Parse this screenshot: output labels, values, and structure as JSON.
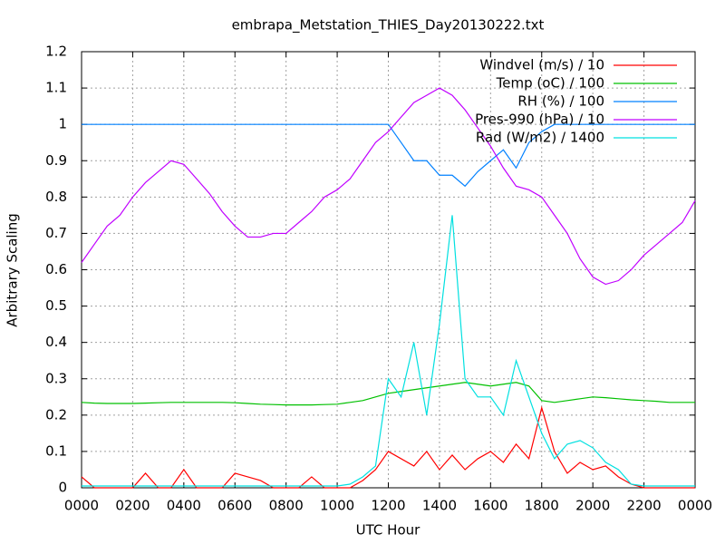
{
  "chart_data": {
    "type": "line",
    "title": "embrapa_Metstation_THIES_Day20130222.txt",
    "x_label": "UTC Hour",
    "y_label": "Arbitrary Scaling",
    "x": [
      0,
      0.5,
      1,
      1.5,
      2,
      2.5,
      3,
      3.5,
      4,
      4.5,
      5,
      5.5,
      6,
      6.5,
      7,
      7.5,
      8,
      8.5,
      9,
      9.5,
      10,
      10.5,
      11,
      11.5,
      12,
      12.5,
      13,
      13.5,
      14,
      14.5,
      15,
      15.5,
      16,
      16.5,
      17,
      17.5,
      18,
      18.5,
      19,
      19.5,
      20,
      20.5,
      21,
      21.5,
      22,
      22.5,
      23,
      23.5,
      24
    ],
    "xlim": [
      0,
      24
    ],
    "xticks": [
      {
        "value": 0,
        "label": "0000"
      },
      {
        "value": 2,
        "label": "0200"
      },
      {
        "value": 4,
        "label": "0400"
      },
      {
        "value": 6,
        "label": "0600"
      },
      {
        "value": 8,
        "label": "0800"
      },
      {
        "value": 10,
        "label": "1000"
      },
      {
        "value": 12,
        "label": "1200"
      },
      {
        "value": 14,
        "label": "1400"
      },
      {
        "value": 16,
        "label": "1600"
      },
      {
        "value": 18,
        "label": "1800"
      },
      {
        "value": 20,
        "label": "2000"
      },
      {
        "value": 22,
        "label": "2200"
      },
      {
        "value": 24,
        "label": "0000"
      }
    ],
    "ylim": [
      0,
      1.2
    ],
    "yticks": [
      0,
      0.1,
      0.2,
      0.3,
      0.4,
      0.5,
      0.6,
      0.7,
      0.8,
      0.9,
      1,
      1.1,
      1.2
    ],
    "grid": true,
    "legend": "top-right",
    "series": [
      {
        "name": "Windvel (m/s) / 10",
        "color": "#ff0000",
        "values": [
          0.03,
          0,
          0,
          0,
          0,
          0.04,
          0,
          0,
          0.05,
          0,
          0,
          0,
          0.04,
          0.03,
          0.02,
          0,
          0,
          0,
          0.03,
          0,
          0,
          0,
          0.02,
          0.05,
          0.1,
          0.08,
          0.06,
          0.1,
          0.05,
          0.09,
          0.05,
          0.08,
          0.1,
          0.07,
          0.12,
          0.08,
          0.22,
          0.1,
          0.04,
          0.07,
          0.05,
          0.06,
          0.03,
          0.01,
          0,
          0,
          0,
          0,
          0
        ]
      },
      {
        "name": "Temp (oC) / 100",
        "color": "#00c000",
        "values": [
          0.235,
          0.233,
          0.232,
          0.232,
          0.232,
          0.233,
          0.234,
          0.235,
          0.235,
          0.235,
          0.235,
          0.235,
          0.234,
          0.232,
          0.23,
          0.229,
          0.228,
          0.228,
          0.228,
          0.229,
          0.23,
          0.235,
          0.24,
          0.25,
          0.26,
          0.265,
          0.27,
          0.275,
          0.28,
          0.285,
          0.29,
          0.285,
          0.28,
          0.285,
          0.29,
          0.28,
          0.24,
          0.235,
          0.24,
          0.245,
          0.25,
          0.248,
          0.245,
          0.242,
          0.24,
          0.238,
          0.235,
          0.235,
          0.235
        ]
      },
      {
        "name": "RH (%) / 100",
        "color": "#0080ff",
        "values": [
          1,
          1,
          1,
          1,
          1,
          1,
          1,
          1,
          1,
          1,
          1,
          1,
          1,
          1,
          1,
          1,
          1,
          1,
          1,
          1,
          1,
          1,
          1,
          1,
          1,
          0.95,
          0.9,
          0.9,
          0.86,
          0.86,
          0.83,
          0.87,
          0.9,
          0.93,
          0.88,
          0.95,
          0.98,
          1,
          1,
          1,
          1,
          1,
          1,
          1,
          1,
          1,
          1,
          1,
          1
        ]
      },
      {
        "name": "Pres-990 (hPa) / 10",
        "color": "#c000ff",
        "values": [
          0.62,
          0.67,
          0.72,
          0.75,
          0.8,
          0.84,
          0.87,
          0.9,
          0.89,
          0.85,
          0.81,
          0.76,
          0.72,
          0.69,
          0.69,
          0.7,
          0.7,
          0.73,
          0.76,
          0.8,
          0.82,
          0.85,
          0.9,
          0.95,
          0.98,
          1.02,
          1.06,
          1.08,
          1.1,
          1.08,
          1.04,
          0.99,
          0.94,
          0.88,
          0.83,
          0.82,
          0.8,
          0.75,
          0.7,
          0.63,
          0.58,
          0.56,
          0.57,
          0.6,
          0.64,
          0.67,
          0.7,
          0.73,
          0.79
        ]
      },
      {
        "name": "Rad (W/m2) / 1400",
        "color": "#00e0e0",
        "values": [
          0.005,
          0.005,
          0.005,
          0.005,
          0.005,
          0.005,
          0.005,
          0.005,
          0.005,
          0.005,
          0.005,
          0.005,
          0.005,
          0.005,
          0.005,
          0.005,
          0.005,
          0.005,
          0.005,
          0.005,
          0.005,
          0.01,
          0.03,
          0.06,
          0.3,
          0.25,
          0.4,
          0.2,
          0.45,
          0.75,
          0.3,
          0.25,
          0.25,
          0.2,
          0.35,
          0.25,
          0.15,
          0.08,
          0.12,
          0.13,
          0.11,
          0.07,
          0.05,
          0.01,
          0.005,
          0.005,
          0.005,
          0.005,
          0.005
        ]
      }
    ]
  }
}
